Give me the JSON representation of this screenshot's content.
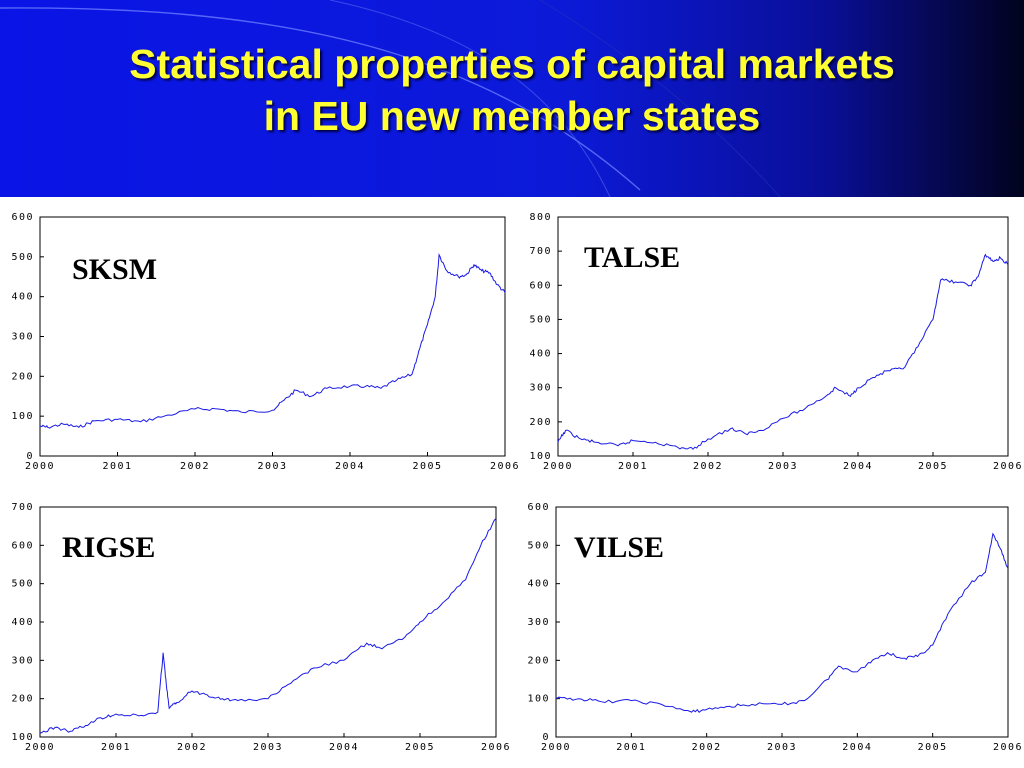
{
  "slide": {
    "title_line1": "Statistical properties of capital markets",
    "title_line2": "in EU new member states",
    "colors": {
      "banner": "#0a14e6",
      "title": "#ffff33",
      "series": "#1a1ae6"
    }
  },
  "chart_data": [
    {
      "type": "line",
      "title": "SKSM",
      "x_ticks": [
        "2000",
        "2001",
        "2002",
        "2003",
        "2004",
        "2005",
        "2006"
      ],
      "xlim": [
        2000,
        2006
      ],
      "ylim": [
        0,
        600
      ],
      "y_ticks": [
        0,
        100,
        200,
        300,
        400,
        500,
        600
      ],
      "grid": false,
      "series": [
        {
          "x": [
            2000,
            2000.1,
            2000.3,
            2000.5,
            2000.7,
            2001,
            2001.3,
            2001.6,
            2002,
            2002.3,
            2002.6,
            2003,
            2003.15,
            2003.3,
            2003.5,
            2003.7,
            2004,
            2004.2,
            2004.4,
            2004.6,
            2004.8,
            2004.9,
            2005,
            2005.1,
            2005.15,
            2005.25,
            2005.4,
            2005.5,
            2005.6,
            2005.7,
            2005.8,
            2005.9,
            2006
          ],
          "y": [
            75,
            72,
            80,
            72,
            88,
            92,
            86,
            100,
            118,
            118,
            110,
            115,
            140,
            165,
            150,
            170,
            175,
            175,
            170,
            190,
            205,
            270,
            330,
            400,
            505,
            465,
            450,
            455,
            480,
            465,
            460,
            430,
            410
          ]
        }
      ]
    },
    {
      "type": "line",
      "title": "TALSE",
      "x_ticks": [
        "2000",
        "2001",
        "2002",
        "2003",
        "2004",
        "2005",
        "2006"
      ],
      "xlim": [
        2000,
        2006
      ],
      "ylim": [
        100,
        800
      ],
      "y_ticks": [
        100,
        200,
        300,
        400,
        500,
        600,
        700,
        800
      ],
      "grid": false,
      "series": [
        {
          "x": [
            2000,
            2000.1,
            2000.3,
            2000.5,
            2000.8,
            2001,
            2001.3,
            2001.6,
            2001.8,
            2002,
            2002.3,
            2002.5,
            2002.7,
            2003,
            2003.3,
            2003.6,
            2003.7,
            2003.9,
            2004,
            2004.2,
            2004.4,
            2004.6,
            2004.8,
            2005,
            2005.1,
            2005.3,
            2005.5,
            2005.6,
            2005.7,
            2005.8,
            2005.9,
            2006
          ],
          "y": [
            140,
            175,
            150,
            140,
            130,
            145,
            140,
            125,
            120,
            150,
            180,
            165,
            175,
            210,
            240,
            280,
            300,
            275,
            300,
            330,
            350,
            355,
            420,
            500,
            615,
            610,
            600,
            625,
            690,
            670,
            680,
            660
          ]
        }
      ]
    },
    {
      "type": "line",
      "title": "RIGSE",
      "x_ticks": [
        "2000",
        "2001",
        "2002",
        "2003",
        "2004",
        "2005",
        "2006"
      ],
      "xlim": [
        2000,
        2006
      ],
      "ylim": [
        100,
        700
      ],
      "y_ticks": [
        100,
        200,
        300,
        400,
        500,
        600,
        700
      ],
      "grid": false,
      "series": [
        {
          "x": [
            2000,
            2000.2,
            2000.4,
            2000.6,
            2000.8,
            2001,
            2001.3,
            2001.55,
            2001.62,
            2001.66,
            2001.7,
            2001.8,
            2002,
            2002.2,
            2002.4,
            2002.6,
            2003,
            2003.3,
            2003.6,
            2004,
            2004.3,
            2004.5,
            2004.8,
            2005,
            2005.3,
            2005.6,
            2005.8,
            2006
          ],
          "y": [
            110,
            125,
            115,
            130,
            150,
            160,
            155,
            165,
            320,
            240,
            175,
            190,
            220,
            210,
            200,
            195,
            200,
            240,
            280,
            300,
            345,
            330,
            360,
            400,
            450,
            510,
            600,
            670
          ]
        }
      ]
    },
    {
      "type": "line",
      "title": "VILSE",
      "x_ticks": [
        "2000",
        "2001",
        "2002",
        "2003",
        "2004",
        "2005",
        "2006"
      ],
      "xlim": [
        2000,
        2006
      ],
      "ylim": [
        0,
        600
      ],
      "y_ticks": [
        0,
        100,
        200,
        300,
        400,
        500,
        600
      ],
      "grid": false,
      "series": [
        {
          "x": [
            2000,
            2000.3,
            2000.6,
            2001,
            2001.4,
            2001.8,
            2002,
            2002.3,
            2002.6,
            2003,
            2003.3,
            2003.6,
            2003.75,
            2004,
            2004.2,
            2004.4,
            2004.6,
            2004.8,
            2005,
            2005.2,
            2005.5,
            2005.7,
            2005.8,
            2005.9,
            2006
          ],
          "y": [
            100,
            100,
            92,
            95,
            85,
            65,
            72,
            80,
            85,
            85,
            95,
            150,
            185,
            170,
            200,
            220,
            205,
            210,
            240,
            320,
            400,
            430,
            530,
            490,
            440
          ]
        }
      ]
    }
  ]
}
